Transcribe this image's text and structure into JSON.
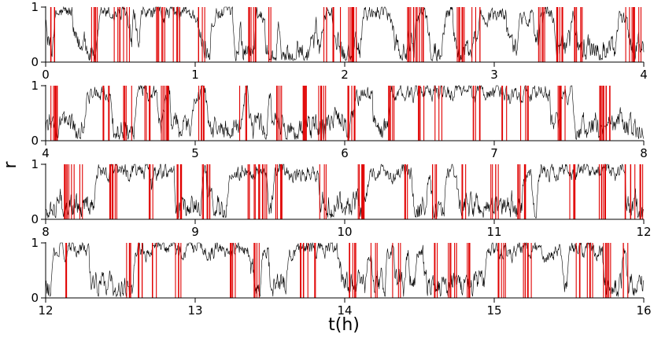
{
  "chart_data": {
    "type": "line",
    "xlabel": "t(h)",
    "ylabel": "r",
    "panels": [
      {
        "xlim": [
          0,
          4
        ],
        "ylim": [
          0,
          1
        ],
        "xticks": [
          "0",
          "1",
          "2",
          "3",
          "4"
        ],
        "yticks": [
          "0",
          "1"
        ]
      },
      {
        "xlim": [
          4,
          8
        ],
        "ylim": [
          0,
          1
        ],
        "xticks": [
          "4",
          "5",
          "6",
          "7",
          "8"
        ],
        "yticks": [
          "0",
          "1"
        ]
      },
      {
        "xlim": [
          8,
          12
        ],
        "ylim": [
          0,
          1
        ],
        "xticks": [
          "8",
          "9",
          "10",
          "11",
          "12"
        ],
        "yticks": [
          "0",
          "1"
        ]
      },
      {
        "xlim": [
          12,
          16
        ],
        "ylim": [
          0,
          1
        ],
        "xticks": [
          "12",
          "13",
          "14",
          "15",
          "16"
        ],
        "yticks": [
          "0",
          "1"
        ]
      }
    ],
    "series_colors": {
      "trace": "#000000",
      "events": "#e00000"
    },
    "events_red_approx_h": [
      0.05,
      0.32,
      0.48,
      0.55,
      0.77,
      0.87,
      1.05,
      1.38,
      1.52,
      1.88,
      1.95,
      2.05,
      2.08,
      2.45,
      2.5,
      2.78,
      2.88,
      3.32,
      3.43,
      3.56,
      3.9,
      3.96,
      4.05,
      4.4,
      4.55,
      4.68,
      4.8,
      5.05,
      5.32,
      5.55,
      5.75,
      5.85,
      6.05,
      6.32,
      6.5,
      6.62,
      6.88,
      7.08,
      7.2,
      7.45,
      7.7,
      7.75,
      8.15,
      8.22,
      8.45,
      8.72,
      8.88,
      9.07,
      9.38,
      9.45,
      9.55,
      9.85,
      10.12,
      10.4,
      10.6,
      10.78,
      11.0,
      11.18,
      11.52,
      11.72,
      11.9,
      11.97,
      12.12,
      12.55,
      12.62,
      12.72,
      12.88,
      13.25,
      13.42,
      13.7,
      13.78,
      14.05,
      14.2,
      14.35,
      14.6,
      14.72,
      14.82,
      15.05,
      15.22,
      15.55,
      15.65,
      15.75,
      15.88
    ]
  }
}
